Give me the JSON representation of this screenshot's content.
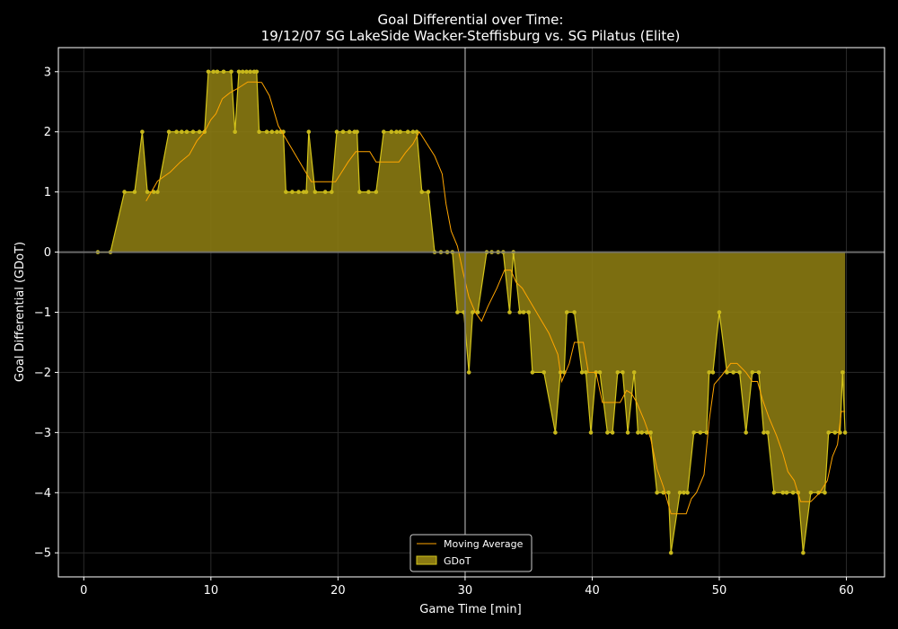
{
  "colors": {
    "background": "#000000",
    "gdot_fill": "#8a7a12",
    "gdot_line": "#d4c41a",
    "gdot_marker": "#c8b81c",
    "moving_average": "#ffa500",
    "axes": "#ffffff",
    "zero_line": "#777777",
    "halftime_line": "#777777",
    "grid": "#2a2a2a"
  },
  "chart_data": {
    "type": "area",
    "title_line1": "Goal Differential over Time:",
    "title_line2": "19/12/07 SG LakeSide Wacker-Steffisburg  vs.  SG Pilatus (Elite)",
    "xlabel": "Game Time [min]",
    "ylabel": "Goal Differential (GDoT)",
    "xlim": [
      -2,
      63
    ],
    "ylim": [
      -5.4,
      3.4
    ],
    "xticks": [
      0,
      10,
      20,
      30,
      40,
      50,
      60
    ],
    "yticks": [
      3,
      2,
      1,
      0,
      -1,
      -2,
      -3,
      -4,
      -5
    ],
    "ytick_labels": [
      "3",
      "2",
      "1",
      "0",
      "−1",
      "−2",
      "−3",
      "−4",
      "−5"
    ],
    "grid": true,
    "halftime_line_x": 30,
    "zero_line_y": 0,
    "legend_position": "bottom-center",
    "series": [
      {
        "name": "GDoT",
        "kind": "step-area",
        "x": [
          1.1,
          2.1,
          3.2,
          4.0,
          4.6,
          5.0,
          5.5,
          5.8,
          6.7,
          7.3,
          7.7,
          8.1,
          8.6,
          9.1,
          9.5,
          9.8,
          10.2,
          10.5,
          11.0,
          11.6,
          11.9,
          12.2,
          12.5,
          12.8,
          13.1,
          13.4,
          13.6,
          13.8,
          14.4,
          14.8,
          15.2,
          15.5,
          15.7,
          15.9,
          16.4,
          16.9,
          17.3,
          17.5,
          17.7,
          18.2,
          19.0,
          19.5,
          19.9,
          20.4,
          20.9,
          21.3,
          21.5,
          21.7,
          22.4,
          23.0,
          23.6,
          24.2,
          24.6,
          24.9,
          25.5,
          25.9,
          26.2,
          26.6,
          27.1,
          27.6,
          28.1,
          28.6,
          29.0,
          29.4,
          29.9,
          30.3,
          30.6,
          31.0,
          31.7,
          32.1,
          32.6,
          33.0,
          33.5,
          33.8,
          34.3,
          34.6,
          35.0,
          35.3,
          36.2,
          37.1,
          37.5,
          37.8,
          38.0,
          38.6,
          39.2,
          39.5,
          39.9,
          40.3,
          40.6,
          41.2,
          41.6,
          42.0,
          42.4,
          42.8,
          43.3,
          43.6,
          43.9,
          44.3,
          44.6,
          45.1,
          45.6,
          46.0,
          46.2,
          46.9,
          47.2,
          47.5,
          48.0,
          48.5,
          49.0,
          49.2,
          49.5,
          50.0,
          50.6,
          51.1,
          51.6,
          52.1,
          52.6,
          53.1,
          53.5,
          53.8,
          54.3,
          55.0,
          55.3,
          55.8,
          56.2,
          56.6,
          57.2,
          57.8,
          58.3,
          58.6,
          59.1,
          59.5,
          59.7,
          59.9
        ],
        "y": [
          0,
          0,
          1,
          1,
          2,
          1,
          1,
          1,
          2,
          2,
          2,
          2,
          2,
          2,
          2,
          3,
          3,
          3,
          3,
          3,
          2,
          3,
          3,
          3,
          3,
          3,
          3,
          2,
          2,
          2,
          2,
          2,
          2,
          1,
          1,
          1,
          1,
          1,
          2,
          1,
          1,
          1,
          2,
          2,
          2,
          2,
          2,
          1,
          1,
          1,
          2,
          2,
          2,
          2,
          2,
          2,
          2,
          1,
          1,
          0,
          0,
          0,
          0,
          -1,
          -1,
          -2,
          -1,
          -1,
          0,
          0,
          0,
          0,
          -1,
          0,
          -1,
          -1,
          -1,
          -2,
          -2,
          -3,
          -2,
          -2,
          -1,
          -1,
          -2,
          -2,
          -3,
          -2,
          -2,
          -3,
          -3,
          -2,
          -2,
          -3,
          -2,
          -3,
          -3,
          -3,
          -3,
          -4,
          -4,
          -4,
          -5,
          -4,
          -4,
          -4,
          -3,
          -3,
          -3,
          -2,
          -2,
          -1,
          -2,
          -2,
          -2,
          -3,
          -2,
          -2,
          -3,
          -3,
          -4,
          -4,
          -4,
          -4,
          -4,
          -5,
          -4,
          -4,
          -4,
          -3,
          -3,
          -3,
          -2,
          -3
        ]
      },
      {
        "name": "Moving Average",
        "kind": "line",
        "x": [
          4.9,
          5.8,
          6.8,
          7.6,
          8.3,
          8.9,
          9.5,
          10.0,
          10.4,
          10.9,
          11.5,
          12.1,
          12.9,
          13.5,
          14.0,
          14.6,
          15.3,
          16.0,
          16.7,
          17.4,
          17.9,
          19.0,
          19.8,
          20.2,
          20.8,
          21.4,
          21.6,
          22.5,
          23.0,
          23.6,
          24.0,
          24.4,
          24.8,
          25.3,
          25.9,
          26.4,
          27.0,
          27.6,
          28.2,
          28.5,
          28.9,
          29.4,
          29.8,
          30.3,
          30.8,
          31.3,
          31.8,
          32.5,
          33.1,
          33.6,
          34.0,
          34.5,
          35.2,
          35.9,
          36.6,
          37.3,
          37.6,
          38.2,
          38.6,
          39.3,
          39.7,
          40.3,
          40.8,
          41.5,
          42.2,
          42.7,
          43.1,
          43.5,
          44.1,
          44.6,
          45.1,
          45.6,
          46.2,
          46.6,
          47.4,
          47.8,
          48.2,
          48.8,
          49.2,
          49.6,
          50.2,
          50.9,
          51.4,
          52.1,
          52.6,
          53.0,
          53.4,
          53.9,
          54.5,
          55.0,
          55.4,
          55.9,
          56.4,
          57.2,
          57.9,
          58.5,
          58.9,
          59.3,
          59.6,
          59.9
        ],
        "y": [
          0.85,
          1.18,
          1.33,
          1.5,
          1.62,
          1.85,
          2.0,
          2.2,
          2.3,
          2.55,
          2.65,
          2.72,
          2.83,
          2.83,
          2.82,
          2.6,
          2.1,
          1.85,
          1.6,
          1.35,
          1.17,
          1.17,
          1.17,
          1.3,
          1.5,
          1.67,
          1.67,
          1.67,
          1.5,
          1.5,
          1.5,
          1.5,
          1.5,
          1.65,
          1.8,
          2.0,
          1.8,
          1.6,
          1.3,
          0.8,
          0.35,
          0.1,
          -0.3,
          -0.75,
          -1.0,
          -1.15,
          -0.9,
          -0.6,
          -0.3,
          -0.3,
          -0.5,
          -0.6,
          -0.85,
          -1.1,
          -1.35,
          -1.7,
          -2.15,
          -1.85,
          -1.5,
          -1.5,
          -2.0,
          -2.0,
          -2.5,
          -2.5,
          -2.5,
          -2.3,
          -2.35,
          -2.5,
          -2.8,
          -3.1,
          -3.6,
          -3.9,
          -4.35,
          -4.35,
          -4.35,
          -4.1,
          -4.0,
          -3.7,
          -2.8,
          -2.2,
          -2.05,
          -1.85,
          -1.85,
          -2.0,
          -2.15,
          -2.15,
          -2.45,
          -2.75,
          -3.05,
          -3.35,
          -3.65,
          -3.8,
          -4.15,
          -4.15,
          -4.0,
          -3.8,
          -3.4,
          -3.2,
          -2.65,
          -2.65
        ]
      }
    ]
  }
}
